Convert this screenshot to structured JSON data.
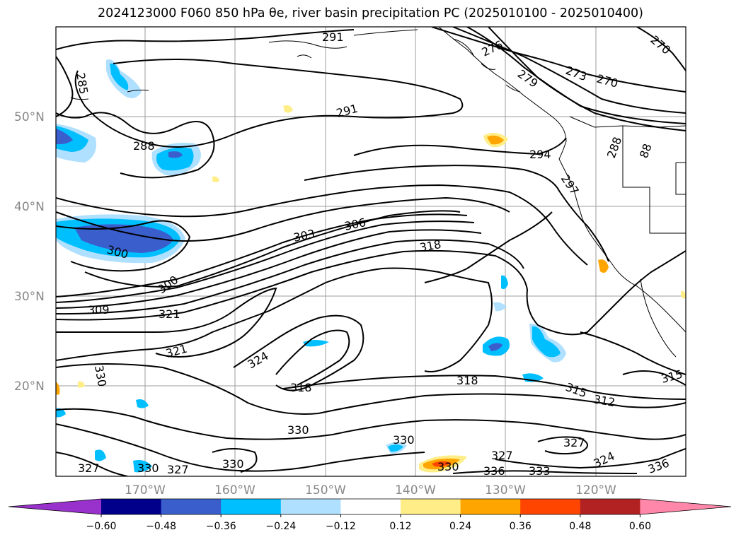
{
  "title": "2024123000 F060 850 hPa θe, river basin precipitation PC (2025010100 - 2025010400)",
  "lat_labels": [
    "50°N",
    "40°N",
    "30°N",
    "20°N"
  ],
  "lon_labels": [
    "170°W",
    "160°W",
    "150°W",
    "140°W",
    "130°W",
    "120°W"
  ],
  "contour_labels": [
    "291",
    "276",
    "279",
    "273",
    "270",
    "270",
    "285",
    "291",
    "288",
    "294",
    "297",
    "288",
    "88",
    "303",
    "306",
    "318",
    "300",
    "300",
    "309",
    "321",
    "321",
    "324",
    "318",
    "318",
    "315",
    "312",
    "315",
    "330",
    "330",
    "330",
    "327",
    "327",
    "330",
    "330",
    "330",
    "327",
    "324",
    "336",
    "333",
    "336",
    "327"
  ],
  "colorbar": {
    "ticks": [
      "−0.60",
      "−0.48",
      "−0.36",
      "−0.24",
      "−0.12",
      "0.12",
      "0.24",
      "0.36",
      "0.48",
      "0.60"
    ],
    "colors": [
      "#9932cc",
      "#00008b",
      "#3a5fcd",
      "#00bfff",
      "#b0e0ff",
      "#ffffff",
      "#ffee88",
      "#ffa500",
      "#ff4500",
      "#b22222",
      "#ff88aa"
    ]
  }
}
